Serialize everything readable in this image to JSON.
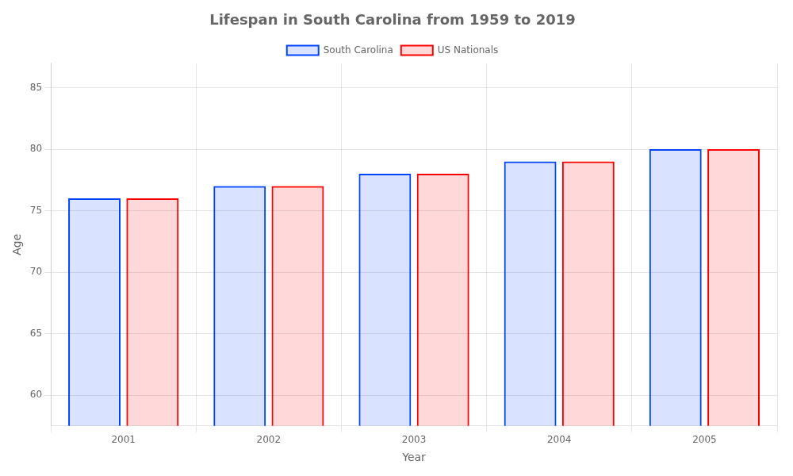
{
  "chart_data": {
    "type": "bar",
    "title": "Lifespan in South Carolina from 1959 to 2019",
    "x_label": "Year",
    "y_label": "Age",
    "categories": [
      2001,
      2002,
      2003,
      2004,
      2005
    ],
    "series": [
      {
        "name": "South Carolina",
        "color": "#0044ff",
        "values": [
          76,
          77,
          78,
          79,
          80
        ]
      },
      {
        "name": "US Nationals",
        "color": "#ff0000",
        "values": [
          76,
          77,
          78,
          79,
          80
        ]
      }
    ],
    "ylim": [
      57.5,
      87
    ],
    "yticks": [
      60,
      65,
      70,
      75,
      80,
      85
    ],
    "grid": true,
    "legend": "top"
  }
}
